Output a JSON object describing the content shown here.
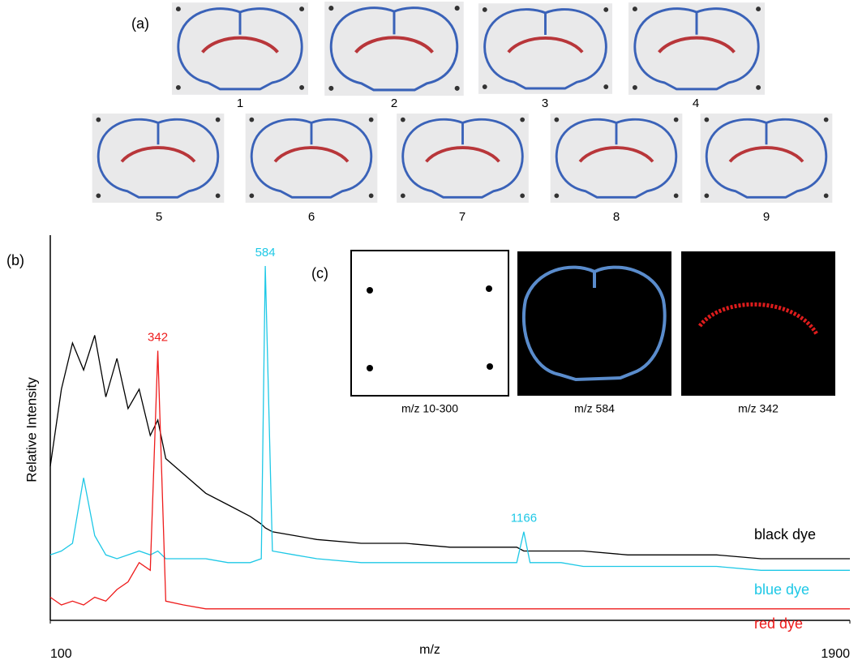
{
  "panels": {
    "a": "(a)",
    "b": "(b)",
    "c": "(c)"
  },
  "sections": [
    "1",
    "2",
    "3",
    "4",
    "5",
    "6",
    "7",
    "8",
    "9"
  ],
  "images": [
    {
      "caption": "m/z 10-300"
    },
    {
      "caption": "m/z 584"
    },
    {
      "caption": "m/z 342"
    }
  ],
  "chart_data": {
    "type": "line",
    "xlabel": "m/z",
    "ylabel": "Relative Intensity",
    "xlim": [
      100,
      1900
    ],
    "xticks": [
      100,
      1900
    ],
    "ylim": [
      0,
      100
    ],
    "x": [
      100,
      125,
      150,
      175,
      200,
      225,
      250,
      275,
      300,
      325,
      342,
      360,
      400,
      450,
      500,
      550,
      575,
      584,
      600,
      650,
      700,
      800,
      900,
      1000,
      1100,
      1150,
      1166,
      1180,
      1250,
      1300,
      1400,
      1500,
      1600,
      1700,
      1800,
      1900
    ],
    "series": [
      {
        "name": "black dye",
        "color": "#000000",
        "values": [
          40,
          60,
          72,
          65,
          74,
          58,
          68,
          55,
          60,
          48,
          52,
          42,
          38,
          33,
          30,
          27,
          25,
          24,
          23,
          22,
          21,
          20,
          20,
          19,
          19,
          19,
          18,
          18,
          18,
          18,
          17,
          17,
          17,
          16,
          16,
          16
        ]
      },
      {
        "name": "blue dye",
        "color": "#1ec8e6",
        "values": [
          17,
          18,
          20,
          37,
          22,
          17,
          16,
          17,
          18,
          17,
          18,
          16,
          16,
          16,
          15,
          15,
          16,
          92,
          18,
          17,
          16,
          15,
          15,
          15,
          15,
          15,
          23,
          15,
          15,
          14,
          14,
          14,
          14,
          13,
          13,
          13
        ]
      },
      {
        "name": "red dye",
        "color": "#ee1c1c",
        "values": [
          6,
          4,
          5,
          4,
          6,
          5,
          8,
          10,
          15,
          13,
          70,
          5,
          4,
          3,
          3,
          3,
          3,
          3,
          3,
          3,
          3,
          3,
          3,
          3,
          3,
          3,
          3,
          3,
          3,
          3,
          3,
          3,
          3,
          3,
          3,
          3
        ]
      }
    ],
    "annotations": [
      {
        "text": "584",
        "x": 584,
        "y": 92,
        "color": "#1ec8e6"
      },
      {
        "text": "342",
        "x": 342,
        "y": 70,
        "color": "#ee1c1c"
      },
      {
        "text": "1166",
        "x": 1166,
        "y": 23,
        "color": "#1ec8e6"
      }
    ]
  }
}
